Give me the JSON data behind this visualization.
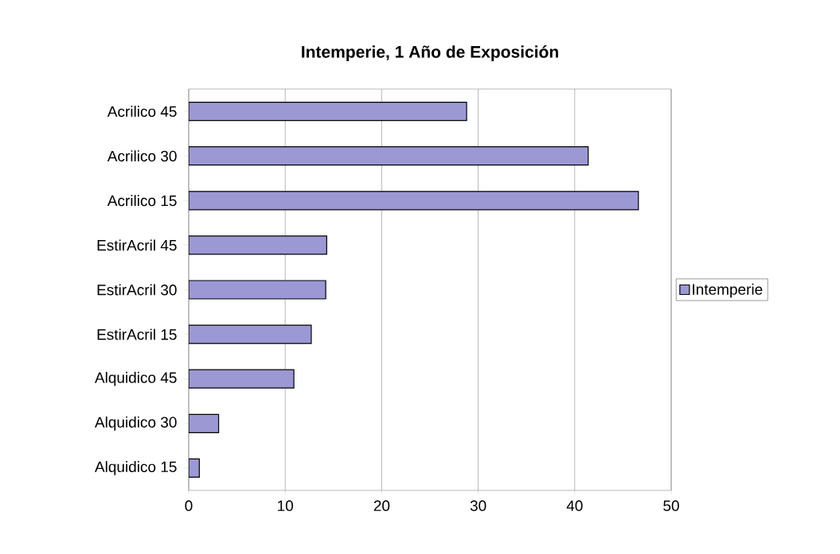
{
  "chart_data": {
    "type": "bar",
    "orientation": "horizontal",
    "title": "Intemperie, 1 Año de Exposición",
    "categories": [
      "Acrilico 45",
      "Acrilico 30",
      "Acrilico 15",
      "EstirAcril 45",
      "EstirAcril 30",
      "EstirAcril 15",
      "Alquidico 45",
      "Alquidico 30",
      "Alquidico 15"
    ],
    "series": [
      {
        "name": "Intemperie",
        "color": "#9c98d4",
        "values": [
          28.8,
          41.4,
          46.6,
          14.3,
          14.2,
          12.7,
          10.9,
          3.1,
          1.1
        ]
      }
    ],
    "xlim": [
      0,
      50
    ],
    "xticks": [
      0,
      10,
      20,
      30,
      40,
      50
    ],
    "grid": "x",
    "legend": "right"
  }
}
